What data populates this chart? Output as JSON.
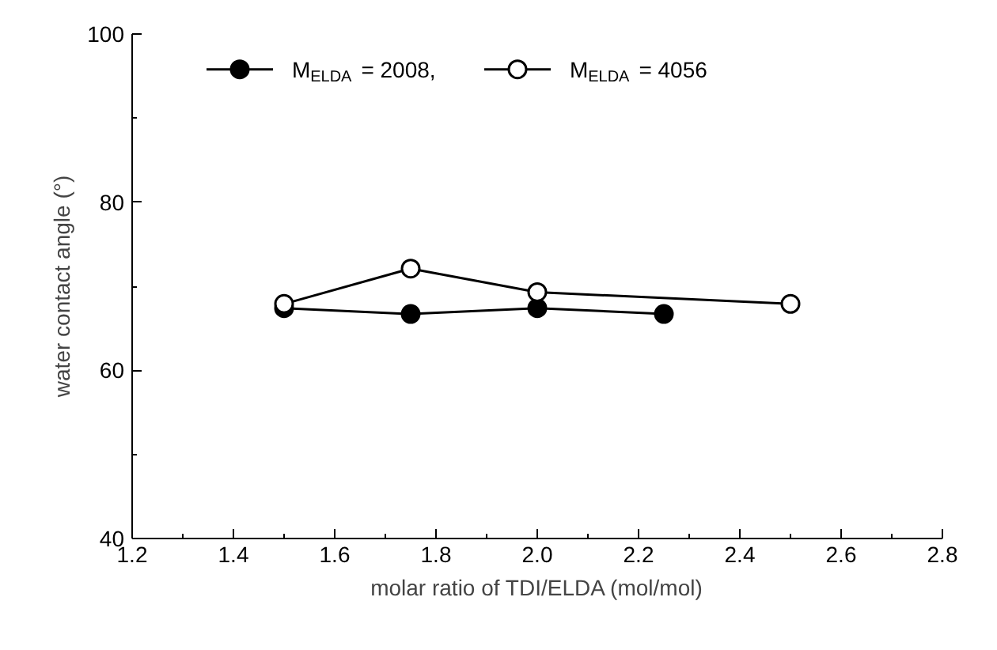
{
  "chart_data": {
    "type": "line",
    "xlabel": "molar ratio of TDI/ELDA (mol/mol)",
    "ylabel": "water contact angle (°)",
    "xlim": [
      1.2,
      2.8
    ],
    "xticks": [
      {
        "value": 1.2,
        "label": "1.2"
      },
      {
        "value": 1.4,
        "label": "1.4"
      },
      {
        "value": 1.6,
        "label": "1.6"
      },
      {
        "value": 1.8,
        "label": "1.8"
      },
      {
        "value": 2.0,
        "label": "2.0"
      },
      {
        "value": 2.2,
        "label": "2.2"
      },
      {
        "value": 2.4,
        "label": "2.4"
      },
      {
        "value": 2.6,
        "label": "2.6"
      },
      {
        "value": 2.8,
        "label": "2.8"
      }
    ],
    "ylim": [
      40,
      100
    ],
    "yticks": [
      40,
      60,
      80,
      100
    ],
    "grid": false,
    "legend": "top",
    "marker": "circle",
    "line_style": "solid",
    "series": [
      {
        "name": "M$_{ELDA}$ = 2008,",
        "color": "#000000",
        "x": [
          1.5,
          1.75,
          2.0,
          2.25
        ],
        "values": [
          67.4,
          66.7,
          67.4,
          66.7
        ]
      },
      {
        "name": "M$_{ELDA}$ = 4056",
        "color": "#000000",
        "x": [
          1.5,
          1.75,
          2.0,
          2.5
        ],
        "values": [
          67.9,
          72.1,
          69.3,
          67.9
        ]
      }
    ]
  }
}
